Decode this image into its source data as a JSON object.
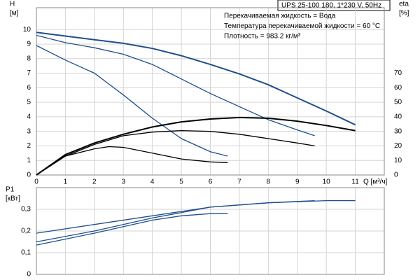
{
  "chart_data": [
    {
      "type": "line",
      "title": "UPS 25-100  180, 1*230 V, 50Hz",
      "annotations": [
        "Перекачиваемая жидкость = Вода",
        "Температура перекачиваемой жидкости = 60 °C",
        "Плотность = 983.2 кг/м³"
      ],
      "ylabel": [
        "H",
        "[м]"
      ],
      "y2label": [
        "eta",
        "[%]"
      ],
      "xlabel": "Q [м³/ч]",
      "xlim": [
        0,
        12
      ],
      "xticks": [
        0,
        1,
        2,
        3,
        4,
        5,
        6,
        7,
        8,
        9,
        10,
        11
      ],
      "ylim": [
        0,
        11.5
      ],
      "yticks": [
        0,
        1,
        2,
        3,
        4,
        5,
        6,
        7,
        8,
        9,
        10
      ],
      "y2lim": [
        0,
        115
      ],
      "y2ticks": [
        0,
        10,
        20,
        30,
        40,
        50,
        60,
        70
      ],
      "grid": true,
      "series": [
        {
          "color": "#1f4e8c",
          "x": [
            0,
            1,
            2,
            3,
            4,
            5,
            6,
            7,
            8,
            9,
            10,
            11
          ],
          "values": [
            9.8,
            9.55,
            9.3,
            9.05,
            8.7,
            8.2,
            7.6,
            6.95,
            6.2,
            5.3,
            4.4,
            3.45
          ]
        },
        {
          "color": "#1f4e8c",
          "x": [
            0,
            1,
            2,
            3,
            4,
            5,
            6,
            7,
            8,
            9,
            9.6
          ],
          "values": [
            9.6,
            9.1,
            8.75,
            8.3,
            7.6,
            6.6,
            5.6,
            4.7,
            3.8,
            3.1,
            2.7
          ]
        },
        {
          "color": "#1f4e8c",
          "x": [
            0,
            1,
            2,
            3,
            4,
            5,
            6,
            6.6
          ],
          "values": [
            8.9,
            7.9,
            7.0,
            5.5,
            3.9,
            2.5,
            1.6,
            1.3
          ]
        },
        {
          "color": "#000000",
          "axis": "y2",
          "x": [
            0,
            1,
            2,
            3,
            4,
            5,
            6,
            7,
            8,
            9,
            10,
            11
          ],
          "values": [
            0,
            14,
            22,
            28,
            33,
            36.5,
            38.5,
            39.5,
            39,
            37,
            34,
            30.5
          ]
        },
        {
          "color": "#000000",
          "axis": "y2",
          "x": [
            0,
            1,
            2,
            3,
            4,
            5,
            6,
            7,
            8,
            9,
            9.6
          ],
          "values": [
            0,
            13,
            21,
            27,
            29.5,
            30.5,
            30,
            28,
            25,
            22,
            20
          ]
        },
        {
          "color": "#000000",
          "axis": "y2",
          "x": [
            0,
            1,
            2,
            2.5,
            3,
            4,
            5,
            6,
            6.6
          ],
          "values": [
            0,
            13,
            18,
            19.5,
            19,
            15,
            11,
            9,
            8.5
          ]
        }
      ]
    },
    {
      "type": "line",
      "ylabel": [
        "P1",
        "[кВт]"
      ],
      "xlim": [
        0,
        12
      ],
      "xticks": [
        0,
        1,
        2,
        3,
        4,
        5,
        6,
        7,
        8,
        9,
        10,
        11
      ],
      "ylim": [
        0,
        0.4
      ],
      "yticks": [
        {
          "value": 0,
          "label": "0"
        },
        {
          "value": 0.1,
          "label": "0,1"
        },
        {
          "value": 0.2,
          "label": "0,2"
        },
        {
          "value": 0.3,
          "label": "0,3"
        }
      ],
      "grid": true,
      "series": [
        {
          "color": "#1f4e8c",
          "x": [
            0,
            2,
            4,
            6,
            8,
            10,
            11
          ],
          "values": [
            0.19,
            0.23,
            0.27,
            0.31,
            0.33,
            0.34,
            0.34
          ]
        },
        {
          "color": "#1f4e8c",
          "x": [
            0,
            2,
            4,
            6,
            8,
            9.6
          ],
          "values": [
            0.15,
            0.2,
            0.26,
            0.31,
            0.33,
            0.34
          ]
        },
        {
          "color": "#1f4e8c",
          "x": [
            0,
            2,
            4,
            5,
            6,
            6.6
          ],
          "values": [
            0.135,
            0.19,
            0.25,
            0.27,
            0.28,
            0.28
          ]
        }
      ]
    }
  ]
}
